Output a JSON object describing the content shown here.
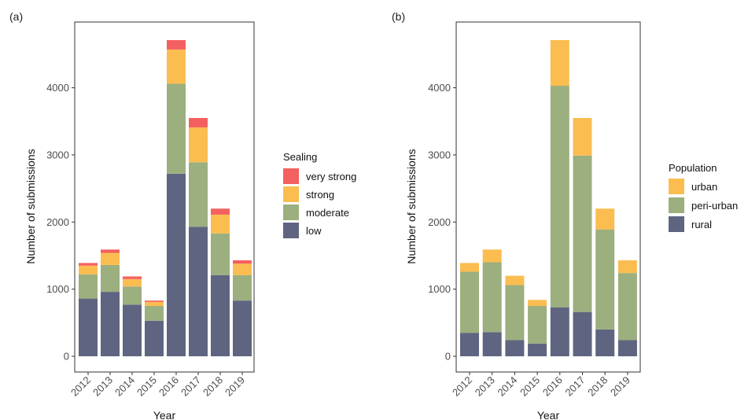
{
  "chart_data": [
    {
      "type": "bar",
      "stacked": true,
      "panel_label": "(a)",
      "xlabel": "Year",
      "ylabel": "Number of submissions",
      "categories": [
        "2012",
        "2013",
        "2014",
        "2015",
        "2016",
        "2017",
        "2018",
        "2019"
      ],
      "ylim": [
        0,
        4800
      ],
      "yticks": [
        "0",
        "1000",
        "2000",
        "3000",
        "4000"
      ],
      "grid": false,
      "legend": {
        "title": "Sealing",
        "placement": "right"
      },
      "series": [
        {
          "name": "low",
          "color": "#5f6580",
          "values": [
            860,
            960,
            770,
            530,
            2720,
            1930,
            1210,
            830
          ]
        },
        {
          "name": "moderate",
          "color": "#9caf7f",
          "values": [
            360,
            400,
            270,
            220,
            1340,
            960,
            620,
            380
          ]
        },
        {
          "name": "strong",
          "color": "#fbbd50",
          "values": [
            130,
            180,
            110,
            60,
            510,
            520,
            280,
            170
          ]
        },
        {
          "name": "very strong",
          "color": "#f46060",
          "values": [
            40,
            50,
            40,
            20,
            140,
            140,
            90,
            50
          ]
        }
      ]
    },
    {
      "type": "bar",
      "stacked": true,
      "panel_label": "(b)",
      "xlabel": "Year",
      "ylabel": "Number of submissions",
      "categories": [
        "2012",
        "2013",
        "2014",
        "2015",
        "2016",
        "2017",
        "2018",
        "2019"
      ],
      "ylim": [
        0,
        4800
      ],
      "yticks": [
        "0",
        "1000",
        "2000",
        "3000",
        "4000"
      ],
      "grid": false,
      "legend": {
        "title": "Population",
        "placement": "right"
      },
      "series": [
        {
          "name": "rural",
          "color": "#5f6580",
          "values": [
            350,
            360,
            240,
            190,
            730,
            660,
            400,
            240
          ]
        },
        {
          "name": "peri-urban",
          "color": "#9caf7f",
          "values": [
            910,
            1040,
            820,
            560,
            3300,
            2330,
            1490,
            1000
          ]
        },
        {
          "name": "urban",
          "color": "#fbbd50",
          "values": [
            130,
            190,
            140,
            90,
            680,
            560,
            310,
            190
          ]
        }
      ]
    }
  ]
}
